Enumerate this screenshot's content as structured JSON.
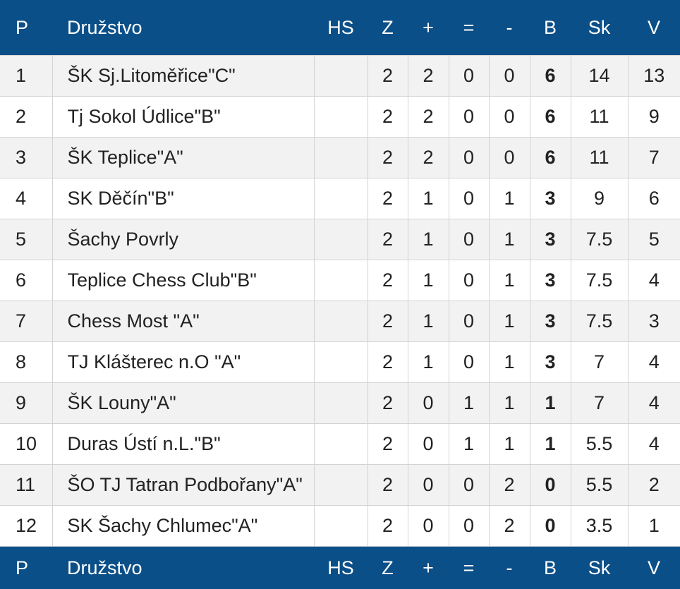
{
  "header": {
    "p": "P",
    "team": "Družstvo",
    "hs": "HS",
    "z": "Z",
    "wins": "+",
    "draws": "=",
    "losses": "-",
    "b": "B",
    "sk": "Sk",
    "v": "V"
  },
  "rows": [
    {
      "p": "1",
      "team": "ŠK Sj.Litoměřice\"C\"",
      "hs": "",
      "z": "2",
      "wins": "2",
      "draws": "0",
      "losses": "0",
      "b": "6",
      "sk": "14",
      "v": "13"
    },
    {
      "p": "2",
      "team": "Tj Sokol Údlice\"B\"",
      "hs": "",
      "z": "2",
      "wins": "2",
      "draws": "0",
      "losses": "0",
      "b": "6",
      "sk": "11",
      "v": "9"
    },
    {
      "p": "3",
      "team": "ŠK Teplice\"A\"",
      "hs": "",
      "z": "2",
      "wins": "2",
      "draws": "0",
      "losses": "0",
      "b": "6",
      "sk": "11",
      "v": "7"
    },
    {
      "p": "4",
      "team": "SK Děčín\"B\"",
      "hs": "",
      "z": "2",
      "wins": "1",
      "draws": "0",
      "losses": "1",
      "b": "3",
      "sk": "9",
      "v": "6"
    },
    {
      "p": "5",
      "team": "Šachy Povrly",
      "hs": "",
      "z": "2",
      "wins": "1",
      "draws": "0",
      "losses": "1",
      "b": "3",
      "sk": "7.5",
      "v": "5"
    },
    {
      "p": "6",
      "team": "Teplice Chess Club\"B\"",
      "hs": "",
      "z": "2",
      "wins": "1",
      "draws": "0",
      "losses": "1",
      "b": "3",
      "sk": "7.5",
      "v": "4"
    },
    {
      "p": "7",
      "team": "Chess Most \"A\"",
      "hs": "",
      "z": "2",
      "wins": "1",
      "draws": "0",
      "losses": "1",
      "b": "3",
      "sk": "7.5",
      "v": "3"
    },
    {
      "p": "8",
      "team": "TJ Klášterec n.O \"A\"",
      "hs": "",
      "z": "2",
      "wins": "1",
      "draws": "0",
      "losses": "1",
      "b": "3",
      "sk": "7",
      "v": "4"
    },
    {
      "p": "9",
      "team": "ŠK Louny\"A\"",
      "hs": "",
      "z": "2",
      "wins": "0",
      "draws": "1",
      "losses": "1",
      "b": "1",
      "sk": "7",
      "v": "4"
    },
    {
      "p": "10",
      "team": "Duras Ústí n.L.\"B\"",
      "hs": "",
      "z": "2",
      "wins": "0",
      "draws": "1",
      "losses": "1",
      "b": "1",
      "sk": "5.5",
      "v": "4"
    },
    {
      "p": "11",
      "team": "ŠO TJ Tatran Podbořany\"A\"",
      "hs": "",
      "z": "2",
      "wins": "0",
      "draws": "0",
      "losses": "2",
      "b": "0",
      "sk": "5.5",
      "v": "2"
    },
    {
      "p": "12",
      "team": "SK Šachy Chlumec\"A\"",
      "hs": "",
      "z": "2",
      "wins": "0",
      "draws": "0",
      "losses": "2",
      "b": "0",
      "sk": "3.5",
      "v": "1"
    }
  ],
  "colors": {
    "header_bg": "#0b4f88",
    "header_text": "#ffffff",
    "row_odd_bg": "#f2f2f2",
    "row_even_bg": "#ffffff",
    "grid": "#d3d3d3",
    "text": "#222222"
  }
}
